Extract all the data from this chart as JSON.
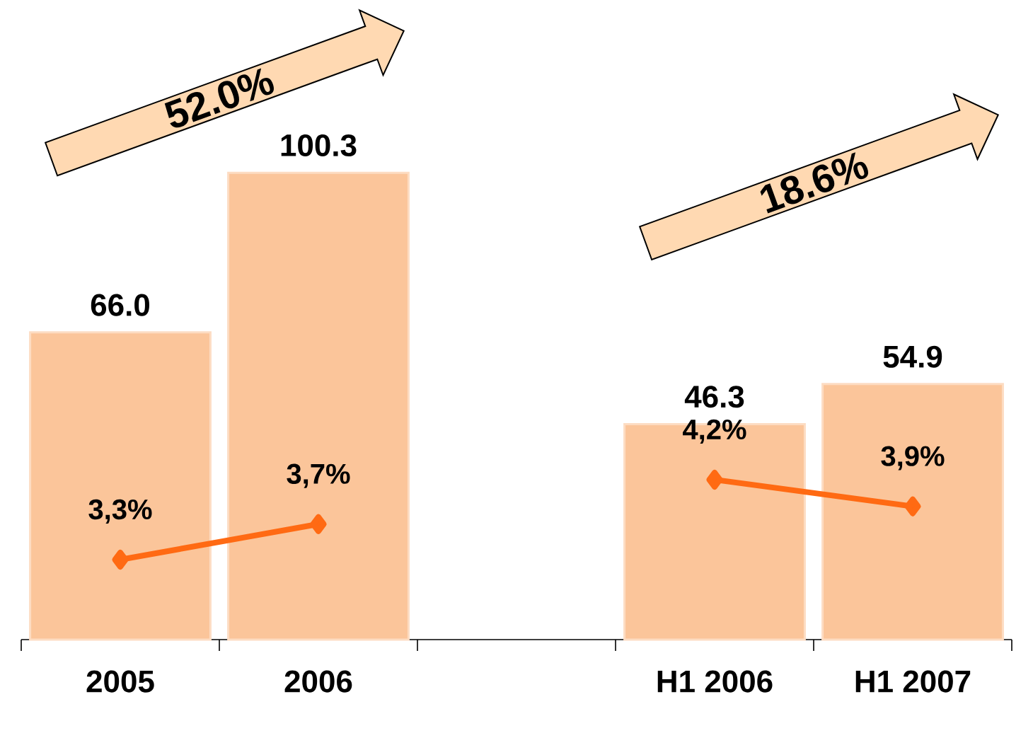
{
  "chart_data": {
    "type": "bar",
    "categories": [
      "2005",
      "2006",
      null,
      "H1 2006",
      "H1 2007"
    ],
    "series": [
      {
        "color": "#fbc59a",
        "values": [
          66.0,
          100.3,
          null,
          46.3,
          54.9
        ],
        "value_labels": [
          "66.0",
          "100.3",
          null,
          "46.3",
          "54.9"
        ]
      },
      {
        "type": "line",
        "axis": "y2",
        "color": "#ff6a13",
        "values": [
          3.3,
          3.7,
          null,
          4.2,
          3.9
        ],
        "value_labels": [
          "3,3%",
          "3,7%",
          null,
          "4,2%",
          "3,9%"
        ]
      }
    ],
    "marker": "diamond",
    "annotations": [
      "52.0%",
      "18.6%"
    ]
  }
}
